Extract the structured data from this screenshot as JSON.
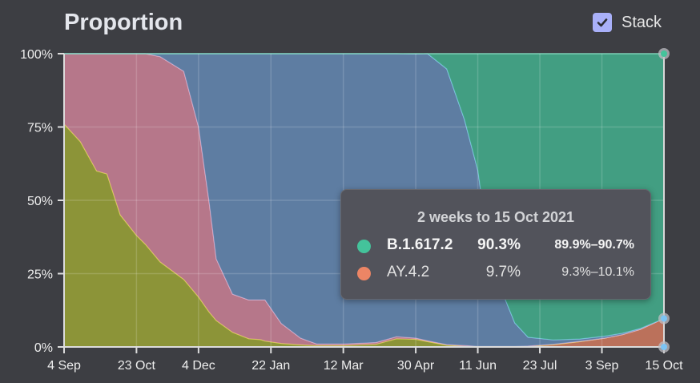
{
  "header": {
    "title": "Proportion",
    "stack_label": "Stack",
    "stack_checked": true
  },
  "tooltip": {
    "title": "2 weeks to 15 Oct 2021",
    "rows": [
      {
        "name": "B.1.617.2",
        "value": "90.3%",
        "low": "89.9%",
        "high": "90.7%",
        "sep": "–",
        "color": "#44c39b"
      },
      {
        "name": "AY.4.2",
        "value": "9.7%",
        "low": "9.3%",
        "high": "10.1%",
        "sep": "–",
        "color": "#ec8565"
      }
    ]
  },
  "chart_data": {
    "type": "area",
    "stacked": true,
    "title": "Proportion",
    "ylabel": "",
    "xlabel": "",
    "ylim": [
      0,
      100
    ],
    "xlim_days": [
      0,
      406
    ],
    "y_ticks": [
      "0%",
      "25%",
      "50%",
      "75%",
      "100%"
    ],
    "y_tick_values": [
      0,
      25,
      50,
      75,
      100
    ],
    "x_ticks": [
      "4 Sep",
      "23 Oct",
      "4 Dec",
      "22 Jan",
      "12 Mar",
      "30 Apr",
      "11 Jun",
      "23 Jul",
      "3 Sep",
      "15 Oct"
    ],
    "x_tick_days": [
      0,
      49,
      91,
      140,
      189,
      238,
      280,
      322,
      364,
      406
    ],
    "grid": true,
    "x_days": [
      0,
      11,
      22,
      29,
      38,
      49,
      55,
      65,
      81,
      91,
      98,
      103,
      114,
      125,
      133,
      136,
      147,
      160,
      171,
      189,
      211,
      225,
      238,
      246,
      259,
      271,
      280,
      287,
      297,
      305,
      314,
      331,
      349,
      366,
      378,
      390,
      406
    ],
    "series": [
      {
        "name": "AY.4.2",
        "color": "#ec8565",
        "values": [
          0,
          0,
          0,
          0,
          0,
          0,
          0,
          0,
          0,
          0,
          0,
          0,
          0,
          0,
          0,
          0,
          0,
          0,
          0,
          0,
          0,
          0,
          0,
          0,
          0,
          0,
          0,
          0,
          0,
          0,
          0.2,
          0.8,
          1.8,
          3,
          4.2,
          6,
          9.7
        ]
      },
      {
        "name": "",
        "color": "#aab634",
        "values": [
          76,
          70,
          60,
          59,
          45,
          38,
          35,
          29,
          23,
          17,
          12,
          9,
          5,
          2.8,
          2.5,
          2,
          1.2,
          0.7,
          0.5,
          0.5,
          0.9,
          2.8,
          2.6,
          1.8,
          0.6,
          0.2,
          0,
          0,
          0,
          0,
          0,
          0,
          0,
          0,
          0,
          0,
          0
        ]
      },
      {
        "name": "",
        "color": "#e48ea6",
        "values": [
          24,
          30,
          40,
          41,
          55,
          62,
          65,
          70,
          71,
          58,
          38,
          21,
          13,
          13.2,
          13.5,
          14,
          6.8,
          2.3,
          0.5,
          0.5,
          0.6,
          0.7,
          0.4,
          0.3,
          0.2,
          0.3,
          0.2,
          0.2,
          0.2,
          0.2,
          0.1,
          0.1,
          0.1,
          0,
          0,
          0,
          0
        ]
      },
      {
        "name": "",
        "color": "#6b95c8",
        "values": [
          0,
          0,
          0,
          0,
          0,
          0,
          0,
          1,
          6,
          25,
          50,
          70,
          82,
          84,
          84,
          84,
          92,
          97,
          99,
          99,
          98.5,
          96.5,
          96.9,
          97.9,
          94,
          77,
          60,
          35,
          18,
          8,
          3,
          1.5,
          0.8,
          0.7,
          0.5,
          0.3,
          0
        ]
      },
      {
        "name": "B.1.617.2",
        "color": "#44c39b",
        "values": [
          0,
          0,
          0,
          0,
          0,
          0,
          0,
          0,
          0,
          0,
          0,
          0,
          0,
          0,
          0,
          0,
          0,
          0,
          0,
          0,
          0,
          0,
          0.1,
          0,
          5.2,
          22.5,
          39.8,
          64.8,
          81.8,
          91.8,
          96.7,
          97.6,
          97.3,
          96.3,
          95.3,
          93.7,
          90.3
        ]
      }
    ]
  }
}
